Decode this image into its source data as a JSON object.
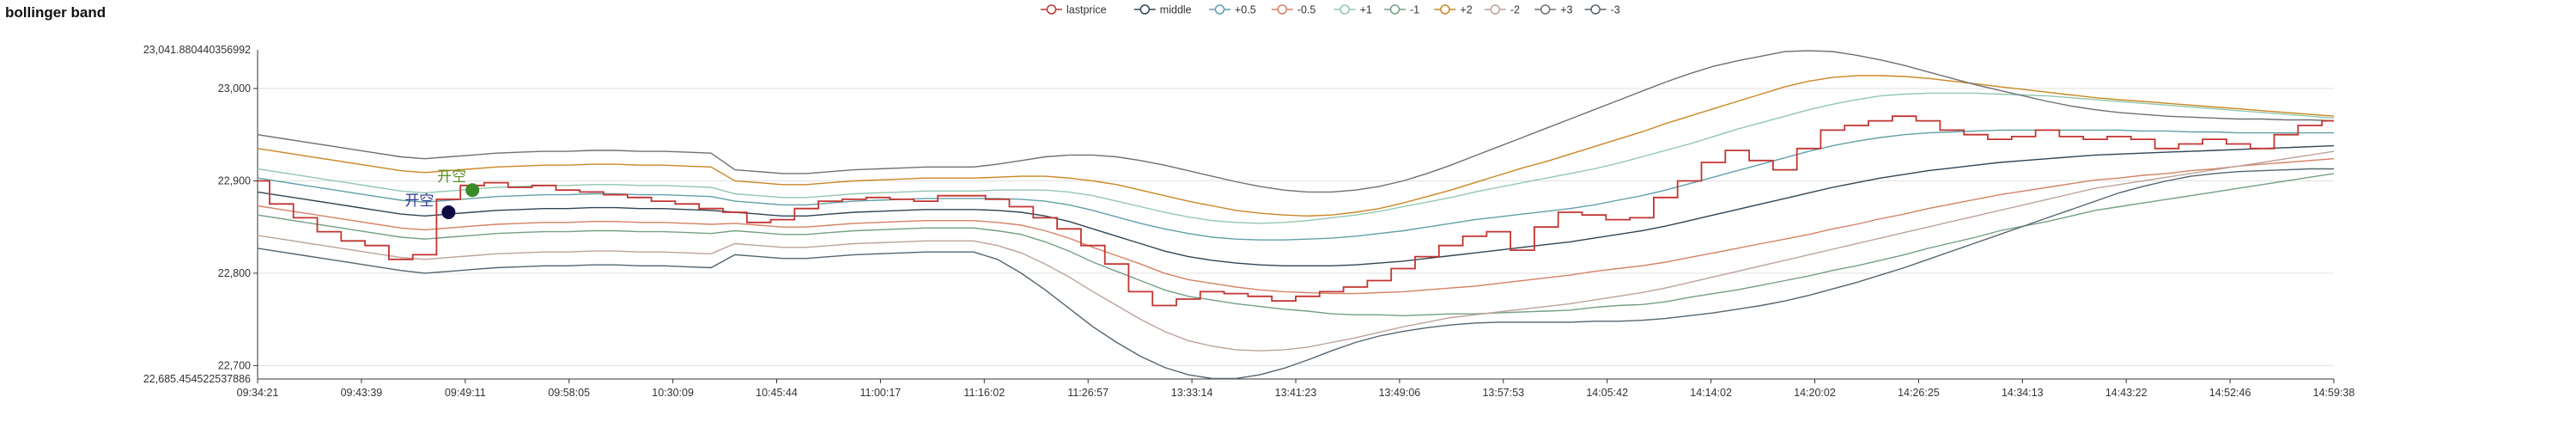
{
  "chart_data": {
    "type": "line",
    "title": "bollinger band",
    "xlabel": "",
    "ylabel": "",
    "ylim": [
      22685.454522537886,
      23041.880440356992
    ],
    "y_edge_labels": [
      "23,041.880440356992",
      "22,685.454522537886"
    ],
    "y_ticks": [
      {
        "value": 23000,
        "label": "23,000"
      },
      {
        "value": 22900,
        "label": "22,900"
      },
      {
        "value": 22800,
        "label": "22,800"
      },
      {
        "value": 22700,
        "label": "22,700"
      }
    ],
    "x_ticks": [
      "09:34:21",
      "09:43:39",
      "09:49:11",
      "09:58:05",
      "10:30:09",
      "10:45:44",
      "11:00:17",
      "11:16:02",
      "11:26:57",
      "13:33:14",
      "13:41:23",
      "13:49:06",
      "13:57:53",
      "14:05:42",
      "14:14:02",
      "14:20:02",
      "14:26:25",
      "14:34:13",
      "14:43:22",
      "14:52:46",
      "14:59:38"
    ],
    "grid": "horizontal",
    "legend_position": "top-center",
    "series": [
      {
        "name": "lastprice",
        "color": "#c23531",
        "values": [
          22900,
          22875,
          22860,
          22845,
          22835,
          22830,
          22815,
          22820,
          22880,
          22895,
          22898,
          22893,
          22895,
          22890,
          22888,
          22885,
          22882,
          22878,
          22875,
          22870,
          22866,
          22855,
          22858,
          22870,
          22878,
          22880,
          22882,
          22880,
          22878,
          22884,
          22884,
          22880,
          22872,
          22860,
          22848,
          22830,
          22810,
          22780,
          22765,
          22772,
          22780,
          22778,
          22775,
          22770,
          22775,
          22780,
          22785,
          22792,
          22805,
          22818,
          22830,
          22840,
          22845,
          22825,
          22850,
          22866,
          22863,
          22858,
          22860,
          22882,
          22900,
          22920,
          22933,
          22922,
          22912,
          22935,
          22955,
          22960,
          22965,
          22970,
          22965,
          22955,
          22950,
          22945,
          22948,
          22955,
          22948,
          22945,
          22948,
          22945,
          22935,
          22940,
          22945,
          22940,
          22935,
          22950,
          22960,
          22965
        ]
      },
      {
        "name": "middle",
        "color": "#2f4554",
        "values": [
          22888,
          22884,
          22880,
          22876,
          22872,
          22868,
          22864,
          22862,
          22864,
          22866,
          22868,
          22869,
          22870,
          22870,
          22871,
          22871,
          22870,
          22870,
          22869,
          22868,
          22866,
          22864,
          22862,
          22862,
          22864,
          22866,
          22867,
          22868,
          22869,
          22869,
          22869,
          22868,
          22866,
          22862,
          22856,
          22848,
          22840,
          22832,
          22824,
          22818,
          22814,
          22811,
          22809,
          22808,
          22808,
          22808,
          22809,
          22811,
          22813,
          22816,
          22819,
          22822,
          22825,
          22828,
          22831,
          22834,
          22838,
          22842,
          22846,
          22851,
          22857,
          22863,
          22869,
          22875,
          22881,
          22887,
          22893,
          22898,
          22903,
          22907,
          22911,
          22914,
          22917,
          22920,
          22922,
          22924,
          22926,
          22928,
          22929,
          22930,
          22931,
          22932,
          22933,
          22934,
          22935,
          22936,
          22937,
          22938
        ]
      },
      {
        "name": "+0.5",
        "color": "#61a0a8",
        "values": [
          22903,
          22899,
          22895,
          22891,
          22887,
          22883,
          22879,
          22877,
          22879,
          22881,
          22883,
          22884,
          22885,
          22885,
          22886,
          22886,
          22885,
          22885,
          22884,
          22883,
          22878,
          22876,
          22874,
          22874,
          22876,
          22878,
          22879,
          22880,
          22881,
          22881,
          22881,
          22881,
          22880,
          22878,
          22874,
          22868,
          22861,
          22854,
          22848,
          22843,
          22839,
          22837,
          22836,
          22836,
          22837,
          22838,
          22840,
          22843,
          22846,
          22850,
          22854,
          22858,
          22861,
          22864,
          22867,
          22870,
          22874,
          22879,
          22884,
          22890,
          22897,
          22904,
          22911,
          22918,
          22925,
          22932,
          22938,
          22943,
          22947,
          22950,
          22952,
          22953,
          22954,
          22955,
          22955,
          22955,
          22955,
          22955,
          22955,
          22954,
          22954,
          22953,
          22953,
          22952,
          22952,
          22952,
          22952,
          22952
        ]
      },
      {
        "name": "-0.5",
        "color": "#d48265",
        "values": [
          22873,
          22869,
          22865,
          22861,
          22857,
          22853,
          22849,
          22847,
          22849,
          22851,
          22853,
          22854,
          22855,
          22855,
          22856,
          22856,
          22855,
          22855,
          22854,
          22853,
          22854,
          22852,
          22850,
          22850,
          22852,
          22854,
          22855,
          22856,
          22857,
          22857,
          22857,
          22855,
          22852,
          22846,
          22838,
          22828,
          22819,
          22810,
          22800,
          22793,
          22789,
          22785,
          22782,
          22780,
          22779,
          22778,
          22778,
          22779,
          22780,
          22782,
          22784,
          22786,
          22789,
          22792,
          22795,
          22798,
          22802,
          22805,
          22808,
          22812,
          22817,
          22822,
          22827,
          22832,
          22837,
          22842,
          22848,
          22853,
          22859,
          22864,
          22870,
          22875,
          22880,
          22885,
          22889,
          22893,
          22897,
          22901,
          22903,
          22906,
          22908,
          22911,
          22913,
          22916,
          22918,
          22920,
          22922,
          22924
        ]
      },
      {
        "name": "+1",
        "color": "#91c7ae",
        "values": [
          22913,
          22909,
          22905,
          22901,
          22897,
          22893,
          22889,
          22887,
          22889,
          22891,
          22893,
          22894,
          22895,
          22895,
          22896,
          22896,
          22895,
          22895,
          22894,
          22893,
          22886,
          22884,
          22882,
          22882,
          22884,
          22886,
          22887,
          22888,
          22889,
          22889,
          22889,
          22890,
          22890,
          22890,
          22888,
          22884,
          22878,
          22872,
          22866,
          22861,
          22857,
          22855,
          22854,
          22855,
          22857,
          22860,
          22863,
          22867,
          22872,
          22877,
          22882,
          22888,
          22893,
          22898,
          22903,
          22908,
          22913,
          22919,
          22926,
          22933,
          22940,
          22948,
          22956,
          22963,
          22970,
          22977,
          22983,
          22988,
          22992,
          22994,
          22995,
          22995,
          22995,
          22994,
          22993,
          22992,
          22990,
          22988,
          22986,
          22984,
          22982,
          22980,
          22978,
          22976,
          22974,
          22972,
          22970,
          22968
        ]
      },
      {
        "name": "-1",
        "color": "#749f83",
        "values": [
          22863,
          22859,
          22855,
          22851,
          22847,
          22843,
          22839,
          22837,
          22839,
          22841,
          22843,
          22844,
          22845,
          22845,
          22846,
          22846,
          22845,
          22845,
          22844,
          22843,
          22846,
          22844,
          22842,
          22842,
          22844,
          22846,
          22847,
          22848,
          22849,
          22849,
          22849,
          22846,
          22842,
          22834,
          22824,
          22812,
          22802,
          22792,
          22782,
          22775,
          22771,
          22767,
          22764,
          22761,
          22759,
          22756,
          22755,
          22755,
          22754,
          22755,
          22756,
          22756,
          22757,
          22758,
          22759,
          22760,
          22763,
          22765,
          22766,
          22769,
          22774,
          22778,
          22782,
          22787,
          22792,
          22797,
          22803,
          22808,
          22814,
          22820,
          22827,
          22833,
          22839,
          22846,
          22851,
          22856,
          22862,
          22868,
          22872,
          22876,
          22880,
          22884,
          22888,
          22892,
          22896,
          22900,
          22904,
          22908
        ]
      },
      {
        "name": "+2",
        "color": "#ca8622",
        "values": [
          22935,
          22931,
          22927,
          22923,
          22919,
          22915,
          22911,
          22909,
          22911,
          22913,
          22915,
          22916,
          22917,
          22917,
          22918,
          22918,
          22917,
          22917,
          22916,
          22915,
          22900,
          22898,
          22896,
          22896,
          22898,
          22900,
          22901,
          22902,
          22903,
          22903,
          22903,
          22904,
          22905,
          22905,
          22903,
          22900,
          22896,
          22890,
          22884,
          22878,
          22873,
          22868,
          22865,
          22863,
          22862,
          22863,
          22866,
          22870,
          22876,
          22883,
          22890,
          22898,
          22906,
          22914,
          22921,
          22929,
          22937,
          22945,
          22953,
          22962,
          22970,
          22978,
          22986,
          22994,
          23002,
          23008,
          23012,
          23014,
          23014,
          23013,
          23011,
          23008,
          23005,
          23002,
          22999,
          22996,
          22993,
          22990,
          22988,
          22986,
          22984,
          22982,
          22980,
          22978,
          22976,
          22974,
          22972,
          22970
        ]
      },
      {
        "name": "-2",
        "color": "#bda29a",
        "values": [
          22841,
          22837,
          22833,
          22829,
          22825,
          22821,
          22817,
          22815,
          22817,
          22819,
          22821,
          22822,
          22823,
          22823,
          22824,
          22824,
          22823,
          22823,
          22822,
          22821,
          22832,
          22830,
          22828,
          22828,
          22830,
          22832,
          22833,
          22834,
          22835,
          22835,
          22835,
          22830,
          22822,
          22810,
          22796,
          22780,
          22765,
          22750,
          22737,
          22727,
          22721,
          22717,
          22716,
          22717,
          22720,
          22725,
          22730,
          22736,
          22742,
          22747,
          22752,
          22755,
          22758,
          22761,
          22764,
          22767,
          22771,
          22775,
          22779,
          22784,
          22790,
          22796,
          22802,
          22808,
          22814,
          22820,
          22826,
          22832,
          22838,
          22844,
          22850,
          22856,
          22862,
          22868,
          22874,
          22880,
          22886,
          22892,
          22896,
          22900,
          22904,
          22908,
          22912,
          22916,
          22920,
          22924,
          22928,
          22932
        ]
      },
      {
        "name": "+3",
        "color": "#6e7074",
        "values": [
          22950,
          22946,
          22942,
          22938,
          22934,
          22930,
          22926,
          22924,
          22926,
          22928,
          22930,
          22931,
          22932,
          22932,
          22933,
          22933,
          22932,
          22932,
          22931,
          22930,
          22912,
          22910,
          22908,
          22908,
          22910,
          22912,
          22913,
          22914,
          22915,
          22915,
          22915,
          22918,
          22922,
          22926,
          22928,
          22928,
          22926,
          22922,
          22917,
          22911,
          22905,
          22899,
          22894,
          22890,
          22888,
          22888,
          22890,
          22894,
          22900,
          22908,
          22917,
          22927,
          22937,
          22947,
          22957,
          22967,
          22977,
          22987,
          22997,
          23007,
          23016,
          23024,
          23030,
          23035,
          23040,
          23041,
          23040,
          23036,
          23031,
          23025,
          23018,
          23011,
          23004,
          22998,
          22992,
          22986,
          22981,
          22977,
          22974,
          22972,
          22970,
          22969,
          22968,
          22967,
          22967,
          22966,
          22966,
          22965
        ]
      },
      {
        "name": "-3",
        "color": "#546570",
        "values": [
          22827,
          22823,
          22819,
          22815,
          22811,
          22807,
          22803,
          22800,
          22802,
          22804,
          22806,
          22807,
          22808,
          22808,
          22809,
          22809,
          22808,
          22808,
          22807,
          22806,
          22820,
          22818,
          22816,
          22816,
          22818,
          22820,
          22821,
          22822,
          22823,
          22823,
          22823,
          22815,
          22800,
          22782,
          22762,
          22742,
          22725,
          22710,
          22698,
          22690,
          22686,
          22686,
          22690,
          22697,
          22706,
          22716,
          22725,
          22732,
          22737,
          22741,
          22744,
          22746,
          22747,
          22747,
          22747,
          22747,
          22748,
          22748,
          22749,
          22751,
          22754,
          22757,
          22761,
          22765,
          22770,
          22776,
          22783,
          22790,
          22798,
          22806,
          22815,
          22824,
          22833,
          22842,
          22851,
          22860,
          22869,
          22878,
          22887,
          22894,
          22900,
          22905,
          22908,
          22910,
          22911,
          22912,
          22913,
          22913
        ]
      }
    ],
    "markers": [
      {
        "label": "开空",
        "index": 8,
        "value": 22866,
        "color": "#0f0a40",
        "label_color": "#2f3b8f"
      },
      {
        "label": "开空",
        "index": 9,
        "value": 22890,
        "color": "#3a8c2a",
        "label_color": "#5a8f22"
      }
    ]
  }
}
